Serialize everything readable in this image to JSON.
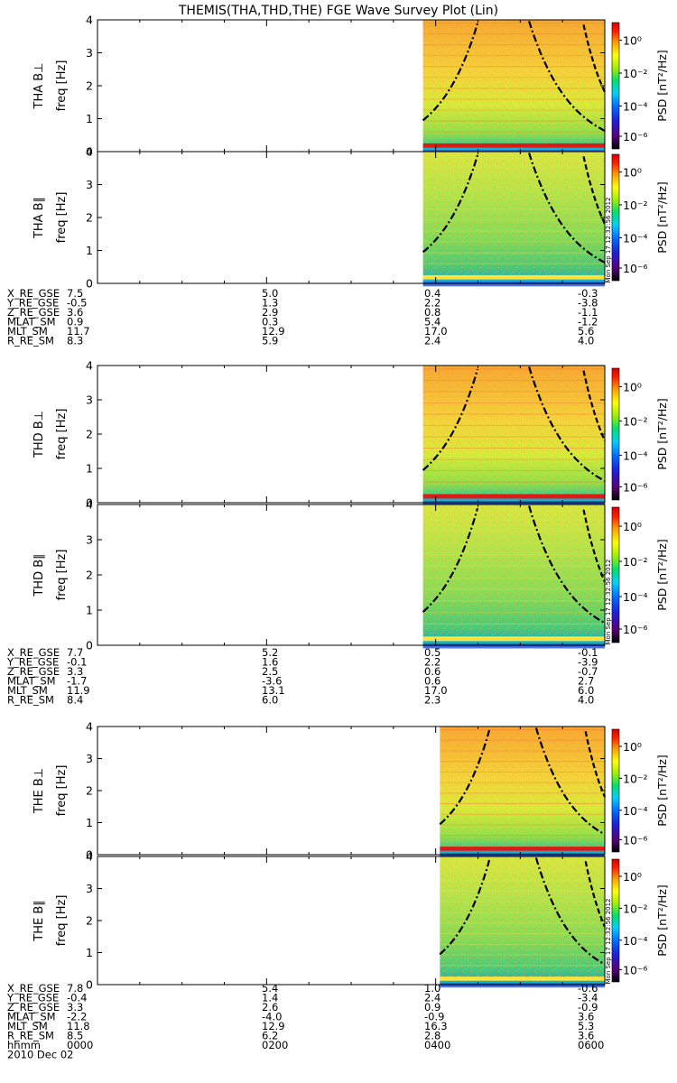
{
  "title": "THEMIS(THA,THD,THE) FGE Wave Survey Plot (Lin)",
  "colors": {
    "spectrogram_low": "#00b8b0",
    "spectrogram_mid": "#a8e63c",
    "spectrogram_high": "#f2d23a",
    "band_red": "#e01818",
    "curve": "#000000",
    "colormap": [
      "#000000",
      "#5a007a",
      "#1f1fd8",
      "#0070ff",
      "#00d0ff",
      "#00e070",
      "#a0f000",
      "#ffff00",
      "#ffa000",
      "#ff2000",
      "#d80000"
    ]
  },
  "chart_data": [
    {
      "type": "heatmap",
      "name": "THA B⊥",
      "ylabel_top": "THA B⊥",
      "ylabel": "freq [Hz]",
      "yticks": [
        "0",
        "1",
        "2",
        "3",
        "4"
      ],
      "ylim": [
        0,
        4
      ],
      "xlim": [
        "0000",
        "0600"
      ],
      "data_start": "0351",
      "colorbar": {
        "label": "PSD [nT²/Hz]",
        "ticks": [
          "10⁰",
          "10⁻²",
          "10⁻⁴",
          "10⁻⁶"
        ],
        "range": [
          1e-07,
          10
        ]
      },
      "intensity": "high",
      "low_band": "red"
    },
    {
      "type": "heatmap",
      "name": "THA B∥",
      "ylabel_top": "THA B∥",
      "ylabel": "freq [Hz]",
      "yticks": [
        "0",
        "1",
        "2",
        "3",
        "4"
      ],
      "ylim": [
        0,
        4
      ],
      "xlim": [
        "0000",
        "0600"
      ],
      "data_start": "0351",
      "colorbar": {
        "label": "PSD [nT²/Hz]",
        "ticks": [
          "10⁰",
          "10⁻²",
          "10⁻⁴",
          "10⁻⁶"
        ],
        "range": [
          1e-07,
          10
        ]
      },
      "intensity": "mid",
      "low_band": "yellow",
      "stamp": "Mon Sep 17 12:32:56 2012"
    },
    {
      "type": "heatmap",
      "name": "THD B⊥",
      "ylabel_top": "THD B⊥",
      "ylabel": "freq [Hz]",
      "yticks": [
        "0",
        "1",
        "2",
        "3",
        "4"
      ],
      "ylim": [
        0,
        4
      ],
      "xlim": [
        "0000",
        "0600"
      ],
      "data_start": "0351",
      "colorbar": {
        "label": "PSD [nT²/Hz]",
        "ticks": [
          "10⁰",
          "10⁻²",
          "10⁻⁴",
          "10⁻⁶"
        ],
        "range": [
          1e-07,
          10
        ]
      },
      "intensity": "high",
      "low_band": "red"
    },
    {
      "type": "heatmap",
      "name": "THD B∥",
      "ylabel_top": "THD B∥",
      "ylabel": "freq [Hz]",
      "yticks": [
        "0",
        "1",
        "2",
        "3",
        "4"
      ],
      "ylim": [
        0,
        4
      ],
      "xlim": [
        "0000",
        "0600"
      ],
      "data_start": "0351",
      "colorbar": {
        "label": "PSD [nT²/Hz]",
        "ticks": [
          "10⁰",
          "10⁻²",
          "10⁻⁴",
          "10⁻⁶"
        ],
        "range": [
          1e-07,
          10
        ]
      },
      "intensity": "mid",
      "low_band": "yellow",
      "stamp": "Mon Sep 17 12:32:56 2012"
    },
    {
      "type": "heatmap",
      "name": "THE B⊥",
      "ylabel_top": "THE B⊥",
      "ylabel": "freq [Hz]",
      "yticks": [
        "0",
        "1",
        "2",
        "3",
        "4"
      ],
      "ylim": [
        0,
        4
      ],
      "xlim": [
        "0000",
        "0600"
      ],
      "data_start": "0403",
      "colorbar": {
        "label": "PSD [nT²/Hz]",
        "ticks": [
          "10⁰",
          "10⁻²",
          "10⁻⁴",
          "10⁻⁶"
        ],
        "range": [
          1e-07,
          10
        ]
      },
      "intensity": "high",
      "low_band": "red"
    },
    {
      "type": "heatmap",
      "name": "THE B∥",
      "ylabel_top": "THE B∥",
      "ylabel": "freq [Hz]",
      "yticks": [
        "0",
        "1",
        "2",
        "3",
        "4"
      ],
      "ylim": [
        0,
        4
      ],
      "xlim": [
        "0000",
        "0600"
      ],
      "data_start": "0403",
      "colorbar": {
        "label": "PSD [nT²/Hz]",
        "ticks": [
          "10⁰",
          "10⁻²",
          "10⁻⁴",
          "10⁻⁶"
        ],
        "range": [
          1e-07,
          10
        ]
      },
      "intensity": "mid",
      "low_band": "yellow",
      "stamp": "Mon Sep 17 12:32:56 2012"
    }
  ],
  "ephemeris": [
    {
      "rows": [
        {
          "label": "X_RE_GSE",
          "values": [
            "7.5",
            "5.0",
            "0.4",
            "-0.3"
          ]
        },
        {
          "label": "Y_RE_GSE",
          "values": [
            "-0.5",
            "1.3",
            "2.2",
            "-3.8"
          ]
        },
        {
          "label": "Z_RE_GSE",
          "values": [
            "3.6",
            "2.9",
            "0.8",
            "-1.1"
          ]
        },
        {
          "label": "MLAT_SM",
          "values": [
            "0.9",
            "0.3",
            "5.4",
            "-1.2"
          ]
        },
        {
          "label": "MLT_SM",
          "values": [
            "11.7",
            "12.9",
            "17.0",
            "5.6"
          ]
        },
        {
          "label": "R_RE_SM",
          "values": [
            "8.3",
            "5.9",
            "2.4",
            "4.0"
          ]
        }
      ]
    },
    {
      "rows": [
        {
          "label": "X_RE_GSE",
          "values": [
            "7.7",
            "5.2",
            "0.5",
            "-0.1"
          ]
        },
        {
          "label": "Y_RE_GSE",
          "values": [
            "-0.1",
            "1.6",
            "2.2",
            "-3.9"
          ]
        },
        {
          "label": "Z_RE_GSE",
          "values": [
            "3.3",
            "2.5",
            "0.6",
            "-0.7"
          ]
        },
        {
          "label": "MLAT_SM",
          "values": [
            "-1.7",
            "-3.6",
            "0.6",
            "2.7"
          ]
        },
        {
          "label": "MLT_SM",
          "values": [
            "11.9",
            "13.1",
            "17.0",
            "6.0"
          ]
        },
        {
          "label": "R_RE_SM",
          "values": [
            "8.4",
            "6.0",
            "2.3",
            "4.0"
          ]
        }
      ]
    },
    {
      "rows": [
        {
          "label": "X_RE_GSE",
          "values": [
            "7.8",
            "5.4",
            "1.0",
            "-0.6"
          ]
        },
        {
          "label": "Y_RE_GSE",
          "values": [
            "-0.4",
            "1.4",
            "2.4",
            "-3.4"
          ]
        },
        {
          "label": "Z_RE_GSE",
          "values": [
            "3.3",
            "2.6",
            "0.9",
            "-0.9"
          ]
        },
        {
          "label": "MLAT_SM",
          "values": [
            "-2.2",
            "-4.0",
            "-0.9",
            "3.6"
          ]
        },
        {
          "label": "MLT_SM",
          "values": [
            "11.8",
            "12.9",
            "16.3",
            "5.3"
          ]
        },
        {
          "label": "R_RE_SM",
          "values": [
            "8.5",
            "6.2",
            "2.8",
            "3.6"
          ]
        },
        {
          "label": "hhmm",
          "values": [
            "0000",
            "0200",
            "0400",
            "0600"
          ]
        }
      ],
      "date": "2010 Dec 02"
    }
  ]
}
